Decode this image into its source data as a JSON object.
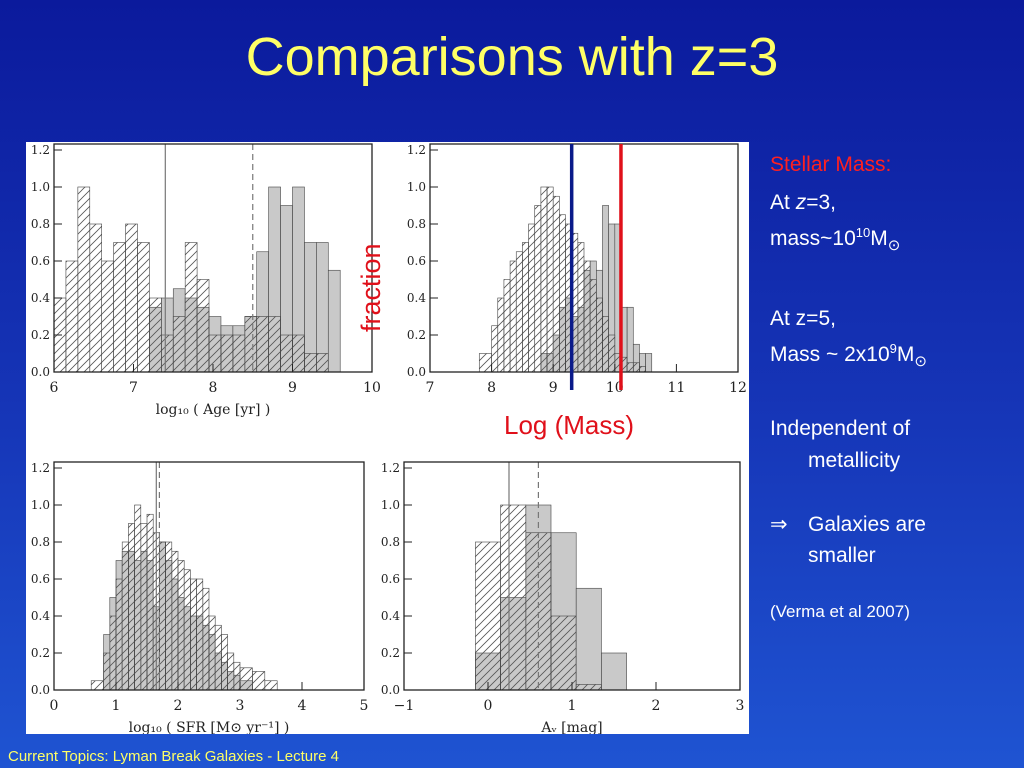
{
  "slide": {
    "title": "Comparisons with z=3",
    "footer": "Current Topics:  Lyman Break Galaxies - Lecture 4",
    "overlay_fraction": "fraction",
    "overlay_logmass": "Log (Mass)"
  },
  "right_text": {
    "heading": "Stellar Mass:",
    "z3_prefix": "At ",
    "z3_z": "z",
    "z3_suffix": "=3,",
    "mass3_prefix": "mass~10",
    "mass3_exp": "10",
    "mass3_unit": "M",
    "sun": "⊙",
    "z5_line": "At z=5,",
    "mass5_prefix": "Mass ~ 2x10",
    "mass5_exp": "9",
    "mass5_unit": "M",
    "indep_1": "Independent of",
    "indep_2": "metallicity",
    "implies": "⇒",
    "smaller_1": "Galaxies are",
    "smaller_2": "smaller",
    "citation": "(Verma et al 2007)"
  },
  "colors": {
    "title": "#ffff66",
    "heading": "#ff2020",
    "line_blue": "#0a1a8a",
    "line_red": "#e0101a",
    "hist_fill": "#c0c0c0"
  },
  "chart_data": [
    {
      "type": "bar",
      "panel": "age",
      "xlabel": "log₁₀ ( Age [yr] )",
      "xlim": [
        6,
        10
      ],
      "ylim": [
        0,
        1.2
      ],
      "xticks": [
        "6",
        "7",
        "8",
        "9",
        "10"
      ],
      "yticks": [
        "0.0",
        "0.2",
        "0.4",
        "0.6",
        "0.8",
        "1.0",
        "1.2"
      ],
      "bin_edges": [
        6.0,
        6.15,
        6.3,
        6.45,
        6.6,
        6.75,
        6.9,
        7.05,
        7.2,
        7.35,
        7.5,
        7.65,
        7.8,
        7.95,
        8.1,
        8.25,
        8.4,
        8.55,
        8.7,
        8.85,
        9.0,
        9.15,
        9.3,
        9.45,
        9.6
      ],
      "series": [
        {
          "style": "hatched",
          "values": [
            0.4,
            0.6,
            1.0,
            0.8,
            0.6,
            0.7,
            0.8,
            0.7,
            0.4,
            0.2,
            0.3,
            0.7,
            0.5,
            0.2,
            0.2,
            0.2,
            0.3,
            0.3,
            0.3,
            0.2,
            0.2,
            0.1,
            0.1,
            0.0
          ]
        },
        {
          "style": "filled",
          "values": [
            0.0,
            0.0,
            0.0,
            0.0,
            0.0,
            0.0,
            0.0,
            0.0,
            0.35,
            0.4,
            0.45,
            0.4,
            0.35,
            0.3,
            0.25,
            0.25,
            0.3,
            0.65,
            1.0,
            0.9,
            1.0,
            0.7,
            0.7,
            0.55
          ]
        }
      ],
      "vlines": [
        {
          "x": 7.4,
          "style": "solid"
        },
        {
          "x": 8.5,
          "style": "dashed"
        }
      ]
    },
    {
      "type": "bar",
      "panel": "mass",
      "xlim": [
        7,
        12
      ],
      "ylim": [
        0,
        1.2
      ],
      "xticks": [
        "7",
        "8",
        "9",
        "10",
        "11",
        "12"
      ],
      "yticks": [
        "0.0",
        "0.2",
        "0.4",
        "0.6",
        "0.8",
        "1.0",
        "1.2"
      ],
      "bin_edges": [
        7.8,
        8.0,
        8.1,
        8.2,
        8.3,
        8.4,
        8.5,
        8.6,
        8.7,
        8.8,
        8.9,
        9.0,
        9.1,
        9.2,
        9.3,
        9.4,
        9.5,
        9.6,
        9.7,
        9.8,
        9.9,
        10.0,
        10.1,
        10.2,
        10.3,
        10.4,
        10.5,
        10.6,
        10.8
      ],
      "series": [
        {
          "style": "hatched",
          "values": [
            0.1,
            0.25,
            0.4,
            0.5,
            0.6,
            0.65,
            0.7,
            0.8,
            0.9,
            1.0,
            1.0,
            0.95,
            0.85,
            0.8,
            0.75,
            0.7,
            0.6,
            0.5,
            0.4,
            0.3,
            0.2,
            0.1,
            0.08,
            0.05,
            0.05,
            0.03,
            0.0,
            0.0
          ]
        },
        {
          "style": "filled",
          "values": [
            0.0,
            0.0,
            0.0,
            0.0,
            0.0,
            0.0,
            0.0,
            0.0,
            0.0,
            0.1,
            0.1,
            0.2,
            0.35,
            0.4,
            0.3,
            0.35,
            0.55,
            0.6,
            0.55,
            0.9,
            0.8,
            0.8,
            0.35,
            0.35,
            0.15,
            0.1,
            0.1,
            0.0
          ]
        }
      ],
      "vlines_overlay": [
        {
          "x": 9.3,
          "color": "blue"
        },
        {
          "x": 10.1,
          "color": "red"
        }
      ]
    },
    {
      "type": "bar",
      "panel": "sfr",
      "xlabel": "log₁₀ ( SFR  [M⊙ yr⁻¹] )",
      "xlim": [
        0,
        5
      ],
      "ylim": [
        0,
        1.2
      ],
      "xticks": [
        "0",
        "1",
        "2",
        "3",
        "4",
        "5"
      ],
      "yticks": [
        "0.0",
        "0.2",
        "0.4",
        "0.6",
        "0.8",
        "1.0",
        "1.2"
      ],
      "bin_edges": [
        0.6,
        0.8,
        0.9,
        1.0,
        1.1,
        1.2,
        1.3,
        1.4,
        1.5,
        1.6,
        1.7,
        1.8,
        1.9,
        2.0,
        2.1,
        2.2,
        2.3,
        2.4,
        2.5,
        2.6,
        2.7,
        2.8,
        2.9,
        3.0,
        3.2,
        3.4,
        3.6,
        3.8
      ],
      "series": [
        {
          "style": "hatched",
          "values": [
            0.05,
            0.2,
            0.4,
            0.6,
            0.8,
            0.9,
            1.0,
            0.9,
            0.95,
            0.85,
            0.8,
            0.8,
            0.75,
            0.7,
            0.65,
            0.6,
            0.6,
            0.55,
            0.4,
            0.35,
            0.3,
            0.2,
            0.15,
            0.12,
            0.1,
            0.05,
            0.0
          ]
        },
        {
          "style": "filled",
          "values": [
            0.0,
            0.3,
            0.5,
            0.7,
            0.75,
            0.75,
            0.7,
            0.75,
            0.7,
            0.45,
            0.8,
            0.7,
            0.6,
            0.5,
            0.45,
            0.4,
            0.4,
            0.35,
            0.3,
            0.2,
            0.15,
            0.1,
            0.08,
            0.05,
            0.0,
            0.0,
            0.0
          ]
        }
      ],
      "vlines": [
        {
          "x": 1.65,
          "style": "solid"
        },
        {
          "x": 1.7,
          "style": "dashed"
        }
      ]
    },
    {
      "type": "bar",
      "panel": "av",
      "xlabel": "Aᵥ [mag]",
      "xlim": [
        -1,
        3
      ],
      "ylim": [
        0,
        1.2
      ],
      "xticks": [
        "−1",
        "0",
        "1",
        "2",
        "3"
      ],
      "yticks": [
        "0.0",
        "0.2",
        "0.4",
        "0.6",
        "0.8",
        "1.0",
        "1.2"
      ],
      "bin_edges": [
        -0.15,
        0.15,
        0.45,
        0.75,
        1.05,
        1.35,
        1.65,
        1.95
      ],
      "series": [
        {
          "style": "hatched",
          "values": [
            0.8,
            1.0,
            0.85,
            0.4,
            0.03,
            0.0,
            0.0
          ]
        },
        {
          "style": "filled",
          "values": [
            0.2,
            0.5,
            1.0,
            0.85,
            0.55,
            0.2,
            0.0
          ]
        }
      ],
      "vlines": [
        {
          "x": 0.25,
          "style": "solid"
        },
        {
          "x": 0.6,
          "style": "dashed"
        }
      ]
    }
  ]
}
